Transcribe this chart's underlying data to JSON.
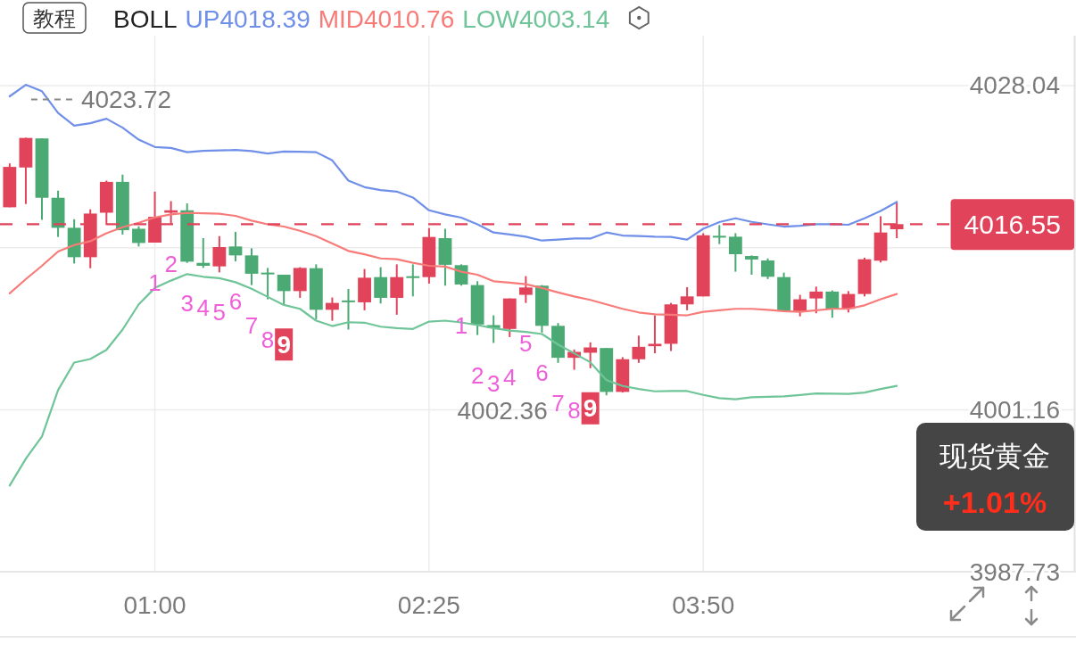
{
  "chart_data": {
    "type": "candlestick",
    "title": "现货黄金",
    "subtitle": "+1.01%",
    "legend_title": "BOLL",
    "legend": "top left",
    "grid": true,
    "xlim": [
      0.2,
      5.75
    ],
    "xticks": [
      {
        "value": 1,
        "label": "01:00"
      },
      {
        "value": 2.4167,
        "label": "02:25"
      },
      {
        "value": 3.8333,
        "label": "03:50"
      }
    ],
    "ylim": [
      3987.73,
      4032.18
    ],
    "yticks": [
      4028.04,
      {
        "value": 4014.6,
        "label": null
      },
      4001.16,
      3987.73
    ],
    "x": [
      0.25,
      0.3333,
      0.4167,
      0.5,
      0.5833,
      0.6667,
      0.75,
      0.8333,
      0.9167,
      1,
      1.0833,
      1.1667,
      1.25,
      1.3333,
      1.4167,
      1.5,
      1.5833,
      1.6667,
      1.75,
      1.8333,
      1.9167,
      2,
      2.0833,
      2.1667,
      2.25,
      2.3333,
      2.4167,
      2.5,
      2.5833,
      2.6667,
      2.75,
      2.8333,
      2.9167,
      3,
      3.0833,
      3.1667,
      3.25,
      3.3333,
      3.4167,
      3.5,
      3.5833,
      3.6667,
      3.75,
      3.8333,
      3.9167,
      4,
      4.0833,
      4.1667,
      4.25,
      4.3333,
      4.4167,
      4.5,
      4.5833,
      4.6667,
      4.75,
      4.8333
    ],
    "ohlc": [
      [
        4017.95,
        4021.59,
        4017.95,
        4021.3
      ],
      [
        4021.25,
        4023.72,
        4018.22,
        4023.7
      ],
      [
        4023.66,
        4023.66,
        4016.91,
        4018.74
      ],
      [
        4018.74,
        4019.33,
        4015.49,
        4016.25
      ],
      [
        4016.25,
        4016.96,
        4013.29,
        4013.81
      ],
      [
        4013.81,
        4017.78,
        4012.9,
        4017.43
      ],
      [
        4017.5,
        4020.16,
        4016.47,
        4020.06
      ],
      [
        4020.06,
        4020.66,
        4015.69,
        4016.05
      ],
      [
        4016.17,
        4016.37,
        4014.7,
        4014.99
      ],
      [
        4015.02,
        4019.25,
        4015.02,
        4017.16
      ],
      [
        4017.5,
        4018.46,
        4016.54,
        4017.7
      ],
      [
        4017.7,
        4018.27,
        4013.34,
        4013.44
      ],
      [
        4013.34,
        4015.39,
        4012.92,
        4013.1
      ],
      [
        4013.05,
        4015.56,
        4012.55,
        4014.65
      ],
      [
        4014.7,
        4015.91,
        4013.47,
        4013.96
      ],
      [
        4013.96,
        4014.55,
        4011.5,
        4012.44
      ],
      [
        4012.46,
        4012.92,
        4010.32,
        4012.39
      ],
      [
        4012.36,
        4012.36,
        4009.9,
        4011.0
      ],
      [
        4011.0,
        4012.98,
        4010.44,
        4012.92
      ],
      [
        4012.9,
        4013.22,
        4008.67,
        4009.45
      ],
      [
        4009.45,
        4010.47,
        4008.54,
        4010.02
      ],
      [
        4010.15,
        4011.18,
        4007.81,
        4010.07
      ],
      [
        4010.07,
        4012.83,
        4009.41,
        4012.11
      ],
      [
        4012.16,
        4012.98,
        4009.97,
        4010.44
      ],
      [
        4010.44,
        4013.22,
        4009.04,
        4012.16
      ],
      [
        4012.16,
        4013.22,
        4010.56,
        4012.1
      ],
      [
        4012.16,
        4016.23,
        4011.62,
        4015.49
      ],
      [
        4015.39,
        4016.17,
        4011.45,
        4013.18
      ],
      [
        4013.15,
        4013.22,
        4011.45,
        4011.55
      ],
      [
        4011.5,
        4011.82,
        4007.36,
        4008.23
      ],
      [
        4008.18,
        4008.99,
        4006.7,
        4007.93
      ],
      [
        4007.86,
        4010.39,
        4007.19,
        4010.39
      ],
      [
        4010.69,
        4012.24,
        4010.02,
        4011.3
      ],
      [
        4011.45,
        4011.5,
        4007.56,
        4008.12
      ],
      [
        4008.12,
        4008.35,
        4005.05,
        4005.47
      ],
      [
        4005.47,
        4006.16,
        4004.48,
        4005.96
      ],
      [
        4005.89,
        4006.75,
        4004.61,
        4006.33
      ],
      [
        4006.28,
        4006.28,
        4002.36,
        4002.64
      ],
      [
        4002.64,
        4005.52,
        4002.59,
        4005.35
      ],
      [
        4005.35,
        4007.31,
        4005.05,
        4006.38
      ],
      [
        4006.43,
        4008.99,
        4005.84,
        4006.63
      ],
      [
        4006.63,
        4010.02,
        4006.03,
        4009.9
      ],
      [
        4009.9,
        4011.33,
        4009.41,
        4010.56
      ],
      [
        4010.56,
        4015.8,
        4010.56,
        4015.63
      ],
      [
        4015.51,
        4016.47,
        4014.9,
        4015.45
      ],
      [
        4015.51,
        4015.8,
        4012.61,
        4014.06
      ],
      [
        4013.91,
        4013.96,
        4012.36,
        4013.62
      ],
      [
        4013.54,
        4013.71,
        4012.0,
        4012.19
      ],
      [
        4012.16,
        4012.53,
        4009.36,
        4009.36
      ],
      [
        4009.34,
        4010.69,
        4008.91,
        4010.32
      ],
      [
        4010.39,
        4011.37,
        4009.16,
        4010.96
      ],
      [
        4010.96,
        4011.06,
        4008.79,
        4009.53
      ],
      [
        4009.53,
        4011.0,
        4009.23,
        4010.76
      ],
      [
        4010.76,
        4013.77,
        4010.56,
        4013.64
      ],
      [
        4013.52,
        4017.21,
        4013.37,
        4015.86
      ],
      [
        4016.13,
        4018.44,
        4015.39,
        4016.55
      ]
    ],
    "colors": [
      "#e0435a",
      "#e0435a",
      "#4baa73",
      "#4baa73",
      "#4baa73",
      "#e0435a",
      "#e0435a",
      "#4baa73",
      "#4baa73",
      "#e0435a",
      "#e0435a",
      "#4baa73",
      "#4baa73",
      "#e0435a",
      "#4baa73",
      "#4baa73",
      "#4baa73",
      "#4baa73",
      "#e0435a",
      "#4baa73",
      "#e0435a",
      "#4baa73",
      "#e0435a",
      "#4baa73",
      "#e0435a",
      "#4baa73",
      "#e0435a",
      "#4baa73",
      "#4baa73",
      "#4baa73",
      "#4baa73",
      "#e0435a",
      "#e0435a",
      "#4baa73",
      "#4baa73",
      "#e0435a",
      "#e0435a",
      "#4baa73",
      "#e0435a",
      "#e0435a",
      "#e0435a",
      "#e0435a",
      "#e0435a",
      "#e0435a",
      "#4baa73",
      "#4baa73",
      "#4baa73",
      "#4baa73",
      "#4baa73",
      "#e0435a",
      "#e0435a",
      "#4baa73",
      "#e0435a",
      "#e0435a",
      "#e0435a",
      "#e0435a"
    ],
    "series": [
      {
        "name": "UP4018.39",
        "type": "line",
        "color": "#6f8fe8",
        "values": [
          4027.15,
          4028.11,
          4027.57,
          4025.77,
          4024.72,
          4024.92,
          4025.29,
          4024.55,
          4023.56,
          4022.95,
          4022.87,
          4022.52,
          4022.63,
          4022.66,
          4022.7,
          4022.61,
          4022.41,
          4022.58,
          4022.55,
          4022.52,
          4021.84,
          4020.16,
          4019.62,
          4019.38,
          4019.25,
          4018.76,
          4017.7,
          4017.36,
          4017.09,
          4016.54,
          4015.86,
          4015.69,
          4015.51,
          4015.19,
          4015.27,
          4015.36,
          4015.36,
          4015.86,
          4015.61,
          4015.56,
          4015.51,
          4015.49,
          4015.27,
          4016.17,
          4016.72,
          4017.04,
          4016.74,
          4016.54,
          4016.35,
          4016.42,
          4016.54,
          4016.54,
          4016.5,
          4017.04,
          4017.65,
          4018.39
        ]
      },
      {
        "name": "MID4010.76",
        "type": "line",
        "color": "#f77b79",
        "values": [
          4010.81,
          4011.99,
          4013.1,
          4014.28,
          4014.82,
          4015.14,
          4015.8,
          4016.3,
          4016.67,
          4017.11,
          4017.36,
          4017.48,
          4017.46,
          4017.41,
          4017.24,
          4016.84,
          4016.54,
          4016.35,
          4016.0,
          4015.56,
          4014.95,
          4014.33,
          4014.05,
          4013.71,
          4013.64,
          4013.35,
          4013.1,
          4013.03,
          4012.61,
          4012.36,
          4011.82,
          4011.7,
          4011.57,
          4011.26,
          4010.89,
          4010.56,
          4010.27,
          4009.9,
          4009.53,
          4009.23,
          4009.08,
          4009.04,
          4008.99,
          4009.28,
          4009.41,
          4009.53,
          4009.53,
          4009.45,
          4009.34,
          4009.28,
          4009.41,
          4009.53,
          4009.53,
          4009.82,
          4010.32,
          4010.76
        ]
      },
      {
        "name": "LOW4003.14",
        "type": "line",
        "color": "#6fc498",
        "values": [
          3994.88,
          3997.1,
          3998.95,
          4002.79,
          4005.07,
          4005.37,
          4006.13,
          4007.81,
          4009.9,
          4011.26,
          4011.87,
          4012.41,
          4012.19,
          4012.07,
          4011.74,
          4011.2,
          4010.52,
          4009.85,
          4009.53,
          4008.55,
          4008.1,
          4008.42,
          4008.38,
          4008.05,
          4007.93,
          4007.86,
          4008.47,
          4008.55,
          4008.4,
          4008.18,
          4007.93,
          4007.73,
          4007.62,
          4007.44,
          4006.57,
          4005.84,
          4005.1,
          4003.62,
          4003.13,
          4002.88,
          4002.69,
          4002.71,
          4002.71,
          4002.39,
          4002.12,
          4002.03,
          4002.2,
          4002.23,
          4002.27,
          4002.38,
          4002.51,
          4002.49,
          4002.47,
          4002.59,
          4002.88,
          4003.14
        ]
      }
    ],
    "ref_lines": [
      {
        "axis": "y",
        "value": 4016.55,
        "color": "#e0435a",
        "line_style": "dashed"
      }
    ],
    "annotations": [
      "教程",
      {
        "text": "4023.72",
        "x": 0.3333,
        "y": 4023.72
      },
      {
        "text": "4002.36",
        "x": 3.3333,
        "y": 4002.36
      },
      {
        "text": "4016.55",
        "x": 5.75,
        "y": 4016.55
      },
      {
        "text": "1",
        "x": 1,
        "y": 4015.02
      },
      {
        "text": "2",
        "x": 1.0833,
        "y": 4016.54
      },
      {
        "text": "3",
        "x": 1.1667,
        "y": 4013.34
      },
      {
        "text": "4",
        "x": 1.25,
        "y": 4012.92
      },
      {
        "text": "5",
        "x": 1.3333,
        "y": 4012.55
      },
      {
        "text": "6",
        "x": 1.4167,
        "y": 4013.47
      },
      {
        "text": "7",
        "x": 1.5,
        "y": 4011.5
      },
      {
        "text": "8",
        "x": 1.5833,
        "y": 4010.32
      },
      {
        "text": "9",
        "x": 1.6667,
        "y": 4009.9
      },
      {
        "text": "1",
        "x": 2.5833,
        "y": 4011.45
      },
      {
        "text": "2",
        "x": 2.6667,
        "y": 4007.36
      },
      {
        "text": "3",
        "x": 2.75,
        "y": 4006.7
      },
      {
        "text": "4",
        "x": 2.8333,
        "y": 4007.19
      },
      {
        "text": "5",
        "x": 2.9167,
        "y": 4010.02
      },
      {
        "text": "6",
        "x": 3,
        "y": 4007.56
      },
      {
        "text": "7",
        "x": 3.0833,
        "y": 4005.05
      },
      {
        "text": "8",
        "x": 3.1667,
        "y": 4004.48
      },
      {
        "text": "9",
        "x": 3.25,
        "y": 4004.61
      }
    ]
  }
}
